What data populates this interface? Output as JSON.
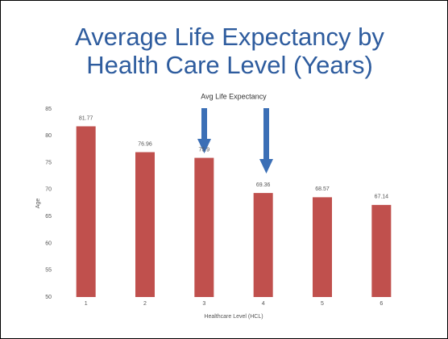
{
  "chart_data": {
    "type": "bar",
    "slide_title": [
      "Average Life Expectancy by",
      "Health Care Level (Years)"
    ],
    "title": "Avg Life Expectancy",
    "x_label": "Healthcare Level (HCL)",
    "y_label": "Age",
    "categories": [
      "1",
      "2",
      "3",
      "4",
      "5",
      "6"
    ],
    "values": [
      81.77,
      76.96,
      75.9,
      69.36,
      68.57,
      67.14
    ],
    "color": "#c0504d",
    "ylim": [
      50,
      85
    ],
    "yticks": [
      50,
      55,
      60,
      65,
      70,
      75,
      80,
      85
    ],
    "grid": false
  }
}
